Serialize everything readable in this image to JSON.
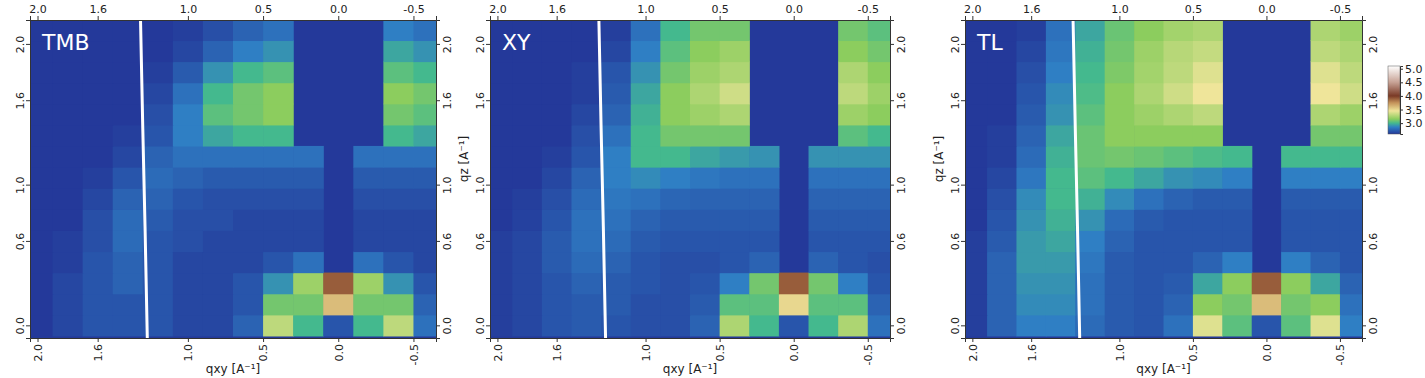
{
  "chart_data": [
    {
      "type": "heatmap",
      "title": "TMB",
      "x_label": "qxy [A⁻¹]",
      "xlim": [
        2.05,
        -0.65
      ],
      "ylim": [
        -0.09,
        2.17
      ],
      "xticks": [
        {
          "value": 2.0,
          "label": "2.0"
        },
        1.6,
        {
          "value": 1.0,
          "label": "1.0"
        },
        0.5,
        {
          "value": 0.0,
          "label": "0.0"
        },
        -0.5
      ],
      "yticks": [
        {
          "value": 0.0,
          "label": "0.0"
        },
        0.6,
        {
          "value": 1.0,
          "label": "1.0"
        },
        1.6,
        {
          "value": 2.0,
          "label": "2.0"
        }
      ],
      "x": [
        2.0,
        1.8,
        1.6,
        1.4,
        1.2,
        1.0,
        0.8,
        0.6,
        0.4,
        0.2,
        0.0,
        -0.2,
        -0.4,
        -0.6
      ],
      "y": [
        0.0,
        0.15,
        0.3,
        0.45,
        0.6,
        0.75,
        0.9,
        1.05,
        1.2,
        1.35,
        1.5,
        1.65,
        1.8,
        1.95,
        2.1
      ],
      "z": [
        [
          2.6,
          2.65,
          2.7,
          2.7,
          2.7,
          2.65,
          2.65,
          2.75,
          3.3,
          3.0,
          2.7,
          3.0,
          3.3,
          2.8
        ],
        [
          2.6,
          2.65,
          2.7,
          2.7,
          2.7,
          2.65,
          2.65,
          2.7,
          3.1,
          3.1,
          3.6,
          3.1,
          3.1,
          2.75
        ],
        [
          2.6,
          2.65,
          2.7,
          2.75,
          2.7,
          2.65,
          2.65,
          2.7,
          2.9,
          3.2,
          3.9,
          3.2,
          2.9,
          2.7
        ],
        [
          2.6,
          2.62,
          2.7,
          2.75,
          2.7,
          2.65,
          2.65,
          2.65,
          2.7,
          2.8,
          null,
          2.8,
          2.7,
          2.65
        ],
        [
          2.6,
          2.62,
          2.68,
          2.78,
          2.7,
          2.68,
          2.65,
          2.65,
          2.65,
          2.65,
          null,
          2.65,
          2.65,
          2.65
        ],
        [
          2.6,
          2.6,
          2.68,
          2.78,
          2.72,
          2.68,
          2.68,
          2.65,
          2.65,
          2.65,
          null,
          2.65,
          2.65,
          2.65
        ],
        [
          2.6,
          2.6,
          2.65,
          2.75,
          2.75,
          2.7,
          2.68,
          2.68,
          2.68,
          2.68,
          null,
          2.68,
          2.68,
          2.68
        ],
        [
          2.6,
          2.6,
          2.62,
          2.7,
          2.78,
          2.75,
          2.72,
          2.72,
          2.72,
          2.72,
          null,
          2.72,
          2.72,
          2.72
        ],
        [
          2.6,
          2.6,
          2.6,
          2.65,
          2.75,
          2.8,
          2.8,
          2.8,
          2.8,
          2.8,
          null,
          2.8,
          2.8,
          2.8
        ],
        [
          2.6,
          2.6,
          2.6,
          2.62,
          2.7,
          2.85,
          2.95,
          3.0,
          3.0,
          null,
          null,
          null,
          3.0,
          2.95
        ],
        [
          2.6,
          2.6,
          2.6,
          2.6,
          2.68,
          2.85,
          3.05,
          3.1,
          3.15,
          null,
          null,
          null,
          3.1,
          3.05
        ],
        [
          2.6,
          2.6,
          2.6,
          2.6,
          2.65,
          2.8,
          3.0,
          3.1,
          3.15,
          null,
          null,
          null,
          3.15,
          3.1
        ],
        [
          2.6,
          2.6,
          2.6,
          2.6,
          2.62,
          2.72,
          2.9,
          3.0,
          3.05,
          null,
          null,
          null,
          3.05,
          3.0
        ],
        [
          2.6,
          2.6,
          2.6,
          2.6,
          2.6,
          2.65,
          2.75,
          2.85,
          2.9,
          null,
          null,
          null,
          2.95,
          2.9
        ],
        [
          2.6,
          2.6,
          2.6,
          2.6,
          2.6,
          2.62,
          2.68,
          2.75,
          2.8,
          null,
          null,
          null,
          2.85,
          2.8
        ]
      ],
      "series": [
        {
          "type": "line",
          "color": "#ffffff",
          "x": [
            1.27,
            1.285,
            1.3,
            1.315
          ],
          "values": [
            -0.09,
            0.7,
            1.4,
            2.17
          ]
        }
      ]
    },
    {
      "type": "heatmap",
      "title": "XY",
      "x_label": "qxy [A⁻¹]",
      "y_label": "qz [A⁻¹]",
      "xlim": [
        2.05,
        -0.65
      ],
      "ylim": [
        -0.09,
        2.17
      ],
      "xticks": [
        {
          "value": 2.0,
          "label": "2.0"
        },
        1.6,
        {
          "value": 1.0,
          "label": "1.0"
        },
        0.5,
        {
          "value": 0.0,
          "label": "0.0"
        },
        -0.5
      ],
      "yticks": [
        {
          "value": 0.0,
          "label": "0.0"
        },
        0.6,
        {
          "value": 1.0,
          "label": "1.0"
        },
        1.6,
        {
          "value": 2.0,
          "label": "2.0"
        }
      ],
      "x": [
        2.0,
        1.8,
        1.6,
        1.4,
        1.2,
        1.0,
        0.8,
        0.6,
        0.4,
        0.2,
        0.0,
        -0.2,
        -0.4,
        -0.6
      ],
      "y": [
        0.0,
        0.15,
        0.3,
        0.45,
        0.6,
        0.75,
        0.9,
        1.05,
        1.2,
        1.35,
        1.5,
        1.65,
        1.8,
        1.95,
        2.1
      ],
      "z": [
        [
          2.62,
          2.65,
          2.7,
          2.72,
          2.7,
          2.68,
          2.68,
          2.75,
          3.25,
          3.0,
          2.7,
          3.0,
          3.25,
          2.8
        ],
        [
          2.62,
          2.65,
          2.7,
          2.72,
          2.72,
          2.68,
          2.68,
          2.72,
          3.05,
          3.05,
          3.5,
          3.05,
          3.05,
          2.75
        ],
        [
          2.62,
          2.65,
          2.7,
          2.75,
          2.72,
          2.7,
          2.68,
          2.7,
          2.85,
          3.1,
          3.9,
          3.1,
          2.85,
          2.7
        ],
        [
          2.62,
          2.65,
          2.72,
          2.78,
          2.75,
          2.7,
          2.68,
          2.68,
          2.7,
          2.75,
          null,
          2.75,
          2.7,
          2.68
        ],
        [
          2.62,
          2.65,
          2.72,
          2.8,
          2.78,
          2.72,
          2.7,
          2.7,
          2.7,
          2.7,
          null,
          2.7,
          2.7,
          2.7
        ],
        [
          2.6,
          2.63,
          2.7,
          2.8,
          2.8,
          2.75,
          2.72,
          2.72,
          2.72,
          2.72,
          null,
          2.72,
          2.72,
          2.72
        ],
        [
          2.6,
          2.62,
          2.68,
          2.78,
          2.82,
          2.8,
          2.76,
          2.75,
          2.75,
          2.75,
          null,
          2.75,
          2.75,
          2.75
        ],
        [
          2.6,
          2.6,
          2.65,
          2.75,
          2.85,
          2.88,
          2.85,
          2.82,
          2.8,
          2.8,
          null,
          2.8,
          2.8,
          2.8
        ],
        [
          2.6,
          2.6,
          2.62,
          2.7,
          2.85,
          3.0,
          3.0,
          2.95,
          2.92,
          2.9,
          null,
          2.9,
          2.9,
          2.9
        ],
        [
          2.6,
          2.6,
          2.6,
          2.68,
          2.8,
          3.0,
          3.1,
          3.1,
          3.1,
          null,
          null,
          null,
          3.05,
          3.0
        ],
        [
          2.6,
          2.6,
          2.6,
          2.65,
          2.75,
          2.98,
          3.15,
          3.2,
          3.25,
          null,
          null,
          null,
          3.2,
          3.15
        ],
        [
          2.6,
          2.6,
          2.6,
          2.62,
          2.72,
          2.95,
          3.15,
          3.25,
          3.35,
          null,
          null,
          null,
          3.3,
          3.2
        ],
        [
          2.6,
          2.6,
          2.6,
          2.62,
          2.7,
          2.9,
          3.1,
          3.2,
          3.25,
          null,
          null,
          null,
          3.25,
          3.15
        ],
        [
          2.6,
          2.6,
          2.6,
          2.6,
          2.65,
          2.85,
          3.05,
          3.15,
          3.2,
          null,
          null,
          null,
          3.15,
          3.1
        ],
        [
          2.6,
          2.6,
          2.6,
          2.6,
          2.62,
          2.8,
          3.0,
          3.1,
          3.1,
          null,
          null,
          null,
          3.1,
          3.05
        ]
      ],
      "series": [
        {
          "type": "line",
          "color": "#ffffff",
          "x": [
            1.27,
            1.285,
            1.3,
            1.315
          ],
          "values": [
            -0.09,
            0.7,
            1.4,
            2.17
          ]
        }
      ]
    },
    {
      "type": "heatmap",
      "title": "TL",
      "x_label": "qxy [A⁻¹]",
      "y_label": "qz [A⁻¹]",
      "xlim": [
        2.05,
        -0.65
      ],
      "ylim": [
        -0.09,
        2.17
      ],
      "xticks": [
        {
          "value": 2.0,
          "label": "2.0"
        },
        1.6,
        {
          "value": 1.0,
          "label": "1.0"
        },
        0.5,
        {
          "value": 0.0,
          "label": "0.0"
        },
        -0.5
      ],
      "yticks": [
        {
          "value": 0.0,
          "label": "0.0"
        },
        0.6,
        {
          "value": 1.0,
          "label": "1.0"
        },
        1.6,
        {
          "value": 2.0,
          "label": "2.0"
        }
      ],
      "x": [
        2.0,
        1.8,
        1.6,
        1.4,
        1.2,
        1.0,
        0.8,
        0.6,
        0.4,
        0.2,
        0.0,
        -0.2,
        -0.4,
        -0.6
      ],
      "y": [
        0.0,
        0.15,
        0.3,
        0.45,
        0.6,
        0.75,
        0.9,
        1.05,
        1.2,
        1.35,
        1.5,
        1.65,
        1.8,
        1.95,
        2.1
      ],
      "z": [
        [
          2.62,
          2.75,
          2.85,
          2.85,
          2.78,
          2.72,
          2.7,
          2.8,
          3.4,
          3.05,
          2.7,
          3.05,
          3.4,
          2.85
        ],
        [
          2.62,
          2.75,
          2.88,
          2.88,
          2.8,
          2.72,
          2.7,
          2.75,
          3.15,
          3.1,
          3.6,
          3.1,
          3.15,
          2.8
        ],
        [
          2.62,
          2.75,
          2.9,
          2.9,
          2.8,
          2.72,
          2.7,
          2.72,
          2.95,
          3.15,
          3.9,
          3.15,
          2.95,
          2.75
        ],
        [
          2.62,
          2.75,
          2.92,
          2.92,
          2.82,
          2.72,
          2.7,
          2.7,
          2.75,
          2.85,
          null,
          2.85,
          2.75,
          2.7
        ],
        [
          2.62,
          2.72,
          2.92,
          2.95,
          2.85,
          2.75,
          2.7,
          2.7,
          2.7,
          2.7,
          null,
          2.7,
          2.7,
          2.7
        ],
        [
          2.6,
          2.7,
          2.9,
          2.98,
          2.9,
          2.78,
          2.72,
          2.7,
          2.7,
          2.7,
          null,
          2.7,
          2.7,
          2.7
        ],
        [
          2.6,
          2.68,
          2.88,
          3.0,
          2.98,
          2.88,
          2.8,
          2.75,
          2.72,
          2.72,
          null,
          2.72,
          2.72,
          2.72
        ],
        [
          2.6,
          2.65,
          2.82,
          3.0,
          3.05,
          3.0,
          2.95,
          2.9,
          2.88,
          2.85,
          null,
          2.85,
          2.85,
          2.85
        ],
        [
          2.6,
          2.62,
          2.78,
          2.98,
          3.08,
          3.1,
          3.08,
          3.05,
          3.02,
          3.0,
          null,
          3.0,
          3.0,
          3.0
        ],
        [
          2.6,
          2.62,
          2.75,
          2.95,
          3.08,
          3.15,
          3.15,
          3.15,
          3.15,
          null,
          null,
          null,
          3.1,
          3.1
        ],
        [
          2.6,
          2.6,
          2.72,
          2.9,
          3.05,
          3.15,
          3.2,
          3.25,
          3.3,
          null,
          null,
          null,
          3.25,
          3.2
        ],
        [
          2.6,
          2.6,
          2.7,
          2.88,
          3.02,
          3.15,
          3.25,
          3.35,
          3.45,
          null,
          null,
          null,
          3.45,
          3.35
        ],
        [
          2.6,
          2.6,
          2.68,
          2.85,
          3.0,
          3.12,
          3.22,
          3.3,
          3.4,
          null,
          null,
          null,
          3.4,
          3.3
        ],
        [
          2.6,
          2.6,
          2.65,
          2.82,
          2.98,
          3.1,
          3.2,
          3.28,
          3.32,
          null,
          null,
          null,
          3.3,
          3.25
        ],
        [
          2.6,
          2.6,
          2.62,
          2.8,
          2.95,
          3.08,
          3.15,
          3.22,
          3.25,
          null,
          null,
          null,
          3.25,
          3.2
        ]
      ],
      "series": [
        {
          "type": "line",
          "color": "#ffffff",
          "x": [
            1.27,
            1.285,
            1.3,
            1.315
          ],
          "values": [
            -0.09,
            0.7,
            1.4,
            2.17
          ]
        }
      ],
      "colorbar": {
        "range": [
          2.6,
          5.1
        ],
        "ticks": [
          {
            "value": 5.0,
            "label": "5.0"
          },
          4.5,
          {
            "value": 4.0,
            "label": "4.0"
          },
          3.5,
          {
            "value": 3.0,
            "label": "3.0"
          }
        ]
      }
    }
  ]
}
